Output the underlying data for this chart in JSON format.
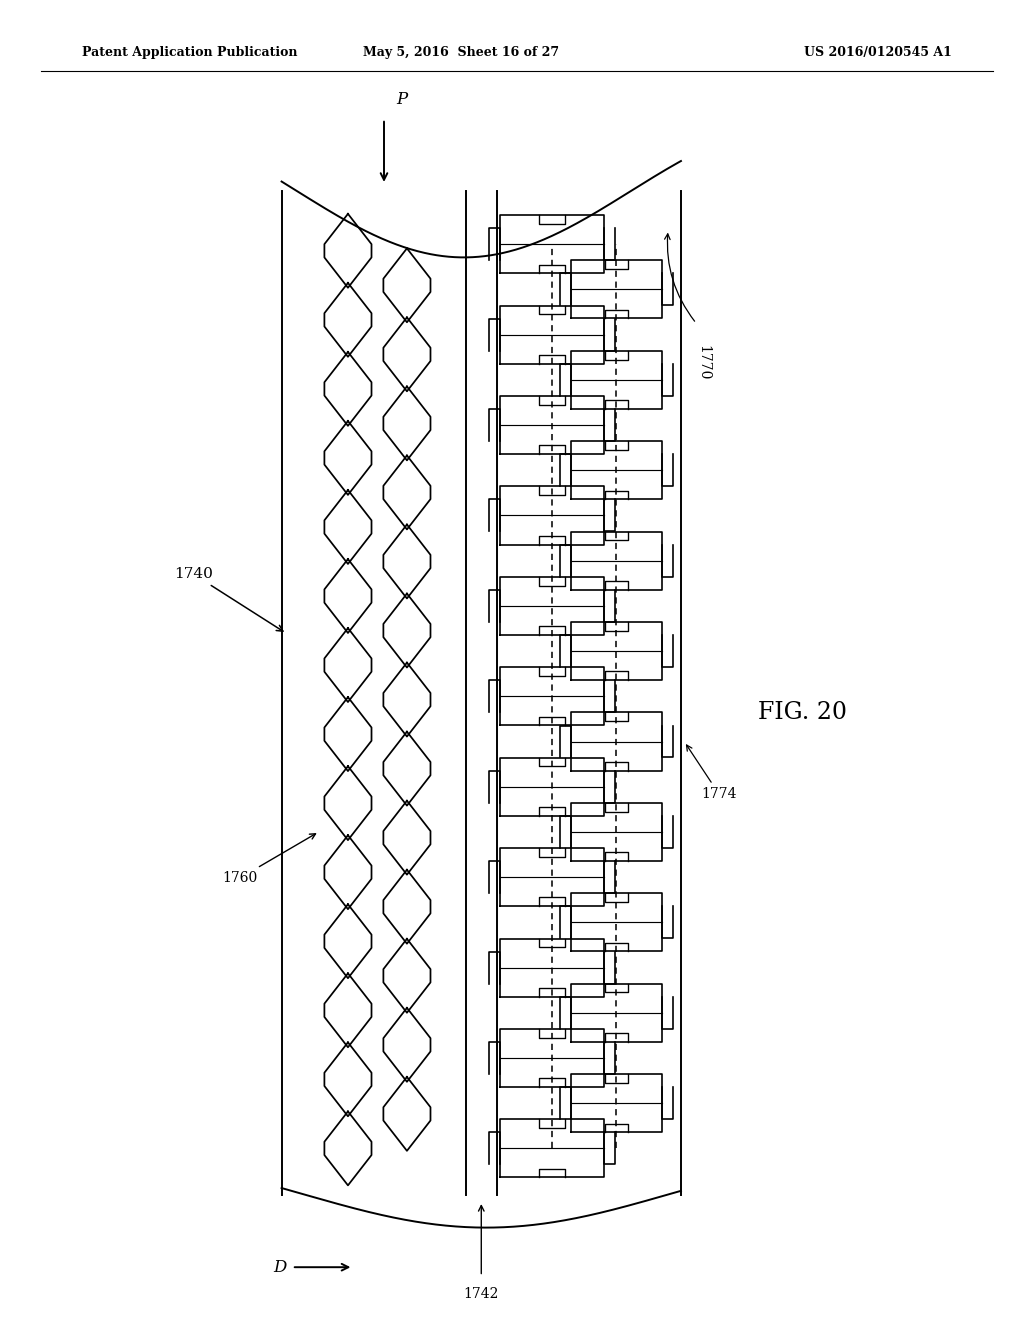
{
  "title": "FIG. 20",
  "header_left": "Patent Application Publication",
  "header_mid": "May 5, 2016  Sheet 16 of 27",
  "header_right": "US 2016/0120545 A1",
  "bg_color": "#ffffff",
  "line_color": "#000000",
  "label_1740": "1740",
  "label_1742": "1742",
  "label_1760": "1760",
  "label_1770": "1770",
  "label_1774": "1774",
  "label_P": "P",
  "label_D": "D",
  "BL": 0.275,
  "BR": 0.665,
  "BT": 0.855,
  "BB": 0.095,
  "DIV1": 0.455,
  "DIV2": 0.485,
  "n_hex": 14,
  "n_staples": 11
}
